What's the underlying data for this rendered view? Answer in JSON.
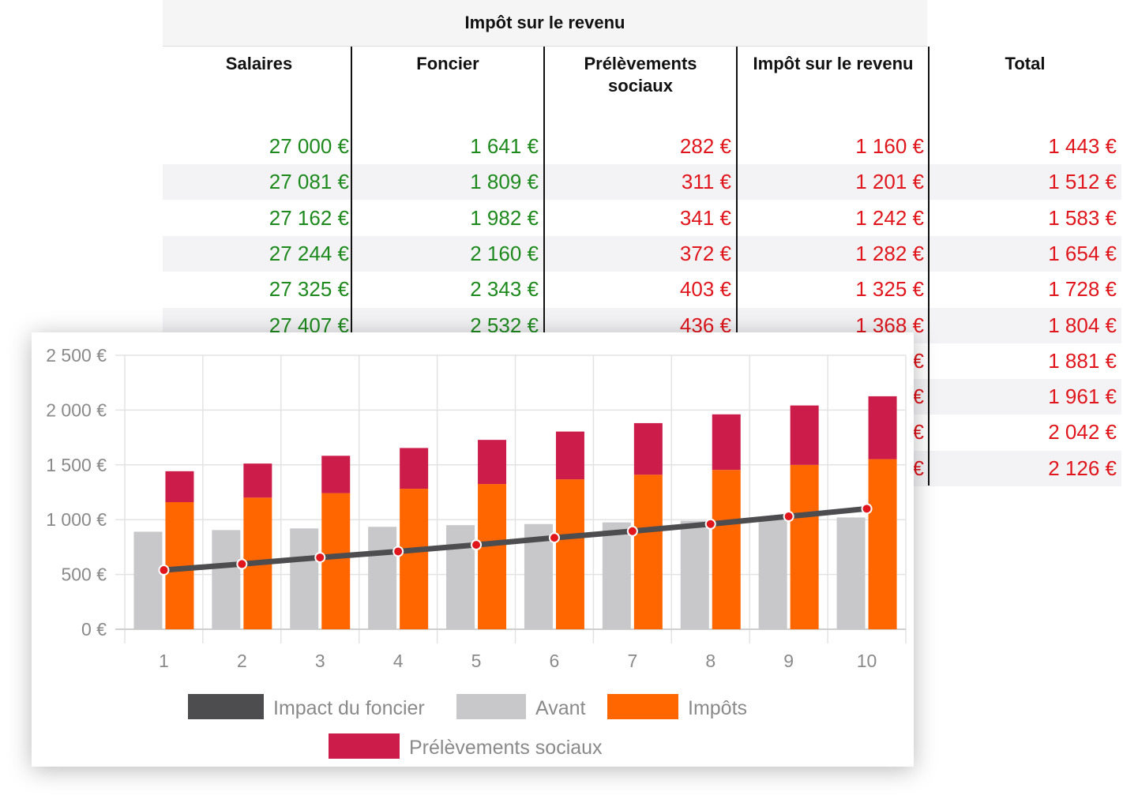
{
  "table": {
    "title": "Impôt sur le revenu",
    "columns": [
      "Salaires",
      "Foncier",
      "Prélèvements sociaux",
      "Impôt sur le revenu",
      "Total"
    ],
    "rows": [
      [
        "27 000 €",
        "1 641 €",
        "282 €",
        "1 160 €",
        "1 443 €"
      ],
      [
        "27 081 €",
        "1 809 €",
        "311 €",
        "1 201 €",
        "1 512 €"
      ],
      [
        "27 162 €",
        "1 982 €",
        "341 €",
        "1 242 €",
        "1 583 €"
      ],
      [
        "27 244 €",
        "2 160 €",
        "372 €",
        "1 282 €",
        "1 654 €"
      ],
      [
        "27 325 €",
        "2 343 €",
        "403 €",
        "1 325 €",
        "1 728 €"
      ],
      [
        "27 407 €",
        "2 532 €",
        "436 €",
        "1 368 €",
        "1 804 €"
      ],
      [
        "",
        "",
        "",
        "€",
        "1 881 €"
      ],
      [
        "",
        "",
        "",
        "€",
        "1 961 €"
      ],
      [
        "",
        "",
        "",
        "€",
        "2 042 €"
      ],
      [
        "",
        "",
        "",
        "€",
        "2 126 €"
      ]
    ],
    "colors": {
      "positive": "#1e8a1e",
      "negative": "#e0161c"
    }
  },
  "chart_data": {
    "type": "bar",
    "categories": [
      "1",
      "2",
      "3",
      "4",
      "5",
      "6",
      "7",
      "8",
      "9",
      "10"
    ],
    "ylim": [
      0,
      2500
    ],
    "yticks": [
      0,
      500,
      1000,
      1500,
      2000,
      2500
    ],
    "ytick_labels": [
      "0 €",
      "500 €",
      "1 000 €",
      "1 500 €",
      "2 000 €",
      "2 500 €"
    ],
    "grid": true,
    "legend_position": "bottom",
    "series": [
      {
        "name": "Avant",
        "kind": "bar",
        "color": "#c8c7c9",
        "values": [
          890,
          905,
          920,
          935,
          950,
          960,
          975,
          990,
          1005,
          1020
        ]
      },
      {
        "name": "Impôts",
        "kind": "stacked-bar",
        "color": "#ff6600",
        "values": [
          1160,
          1201,
          1242,
          1282,
          1325,
          1368,
          1410,
          1454,
          1500,
          1552
        ]
      },
      {
        "name": "Prélèvements sociaux",
        "kind": "stacked-bar",
        "color": "#cc1c4a",
        "values": [
          282,
          311,
          341,
          372,
          403,
          436,
          471,
          507,
          542,
          574
        ]
      },
      {
        "name": "Impact du foncier",
        "kind": "line",
        "color": "#4d4c4e",
        "marker_color": "#e0161c",
        "values": [
          540,
          595,
          655,
          710,
          770,
          835,
          895,
          960,
          1030,
          1100
        ]
      }
    ],
    "legend_order": [
      "Impact du foncier",
      "Avant",
      "Impôts",
      "Prélèvements sociaux"
    ]
  }
}
